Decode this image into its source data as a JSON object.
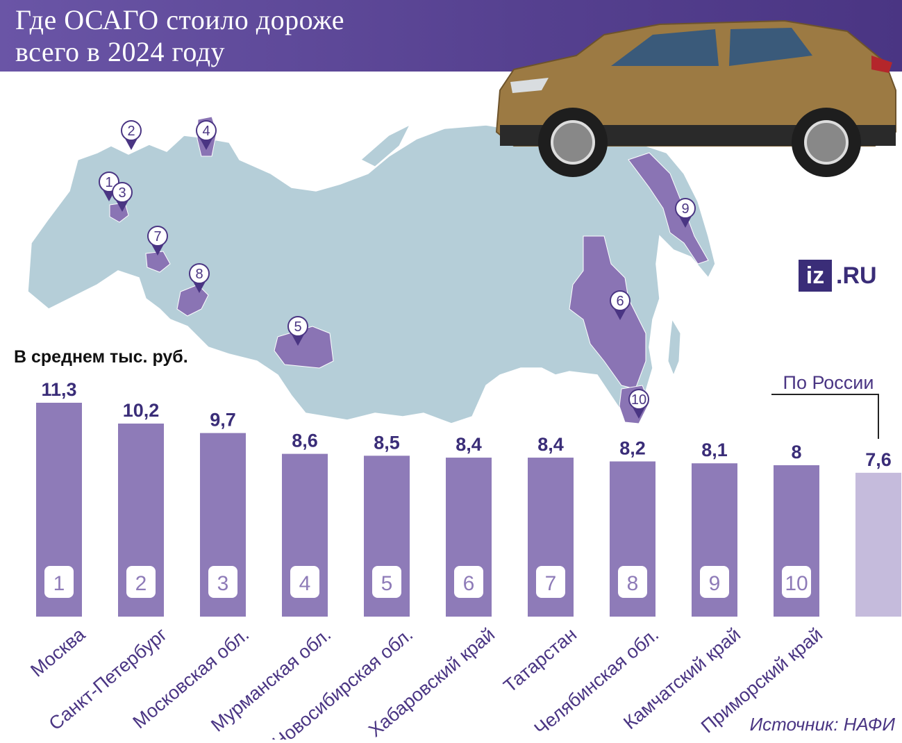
{
  "header": {
    "title_line1": "Где ОСАГО стоило дороже",
    "title_line2": "всего в 2024 году"
  },
  "subtitle": "В среднем тыс. руб.",
  "brand": {
    "box": "iz",
    "suffix": ".RU"
  },
  "source": "Источник: НАФИ",
  "colors": {
    "bar": "#8e7bb8",
    "total_bar": "#c5bbdc",
    "value_text": "#3a2d78",
    "label_text": "#4a3583",
    "map_land": "#b5ced8",
    "map_highlight": "#8a74b4",
    "header": "#5a4596"
  },
  "map": {
    "marker_labels": [
      "1",
      "2",
      "3",
      "4",
      "5",
      "6",
      "7",
      "8",
      "9",
      "10"
    ]
  },
  "chart_data": {
    "type": "bar",
    "title": "Где ОСАГО стоило дороже всего в 2024 году",
    "ylabel": "В среднем тыс. руб.",
    "categories": [
      "Москва",
      "Санкт-Петербург",
      "Московская обл.",
      "Мурманская обл.",
      "Новосибирская обл.",
      "Хабаровский край",
      "Татарстан",
      "Челябинская обл.",
      "Камчатский край",
      "Приморский край",
      ""
    ],
    "ranks": [
      "1",
      "2",
      "3",
      "4",
      "5",
      "6",
      "7",
      "8",
      "9",
      "10",
      ""
    ],
    "values": [
      11.3,
      10.2,
      9.7,
      8.6,
      8.5,
      8.4,
      8.4,
      8.2,
      8.1,
      8,
      7.6
    ],
    "value_labels": [
      "11,3",
      "10,2",
      "9,7",
      "8,6",
      "8,5",
      "8,4",
      "8,4",
      "8,2",
      "8,1",
      "8",
      "7,6"
    ],
    "total_label": "По России",
    "ylim": [
      0,
      11.3
    ],
    "grid": false,
    "legend": "none"
  }
}
